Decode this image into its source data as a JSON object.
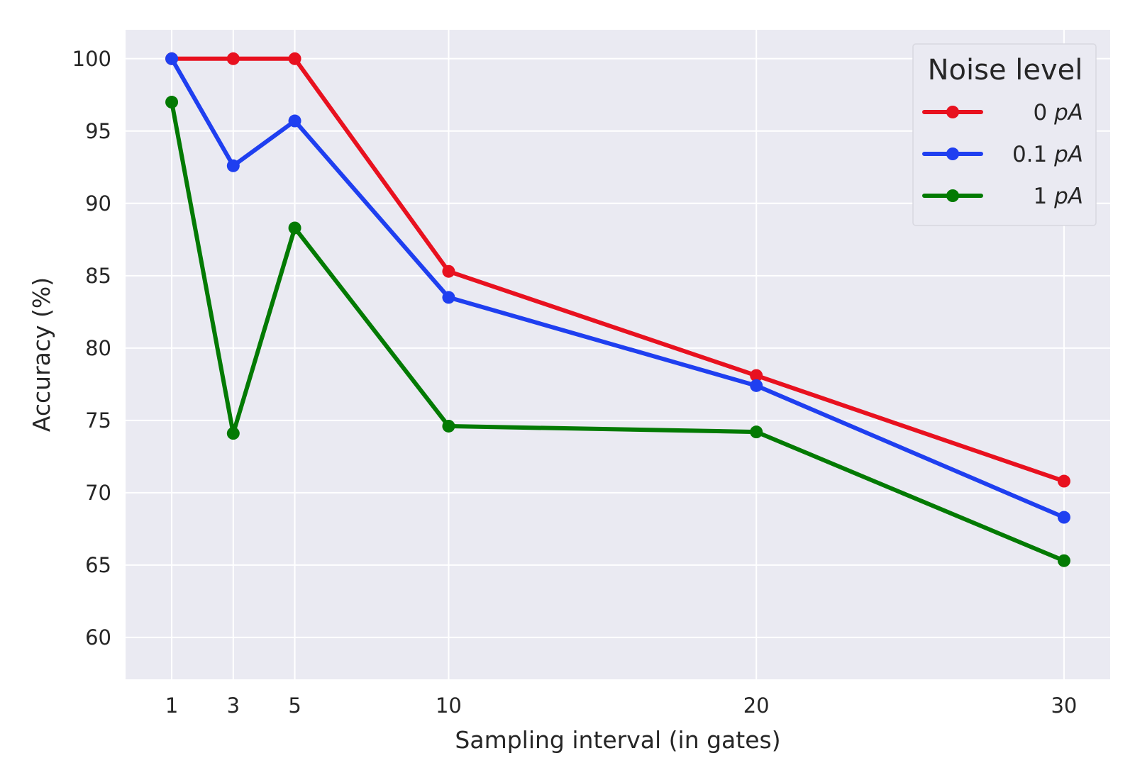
{
  "chart_data": {
    "type": "line",
    "xlabel": "Sampling interval (in gates)",
    "ylabel": "Accuracy (%)",
    "x": [
      1,
      3,
      5,
      10,
      20,
      30
    ],
    "x_ticks": [
      "1",
      "3",
      "5",
      "10",
      "20",
      "30"
    ],
    "xlim": [
      -0.5,
      31.5
    ],
    "y_ticks": [
      "60",
      "65",
      "70",
      "75",
      "80",
      "85",
      "90",
      "95",
      "100"
    ],
    "ylim": [
      57.1,
      102.0
    ],
    "grid": true,
    "legend": {
      "title": "Noise level",
      "placement": "top-right"
    },
    "series": [
      {
        "name": "0 pA",
        "num": "0",
        "unit": "pA",
        "color": "#e8111f",
        "values": [
          100.0,
          100.0,
          100.0,
          85.3,
          78.1,
          70.8
        ]
      },
      {
        "name": "0.1 pA",
        "num": "0.1",
        "unit": "pA",
        "color": "#1f3ff0",
        "values": [
          100.0,
          92.6,
          95.7,
          83.5,
          77.4,
          68.3
        ]
      },
      {
        "name": "1 pA",
        "num": "1",
        "unit": "pA",
        "color": "#037a03",
        "values": [
          97.0,
          74.1,
          88.3,
          74.6,
          74.2,
          65.3
        ]
      }
    ]
  }
}
